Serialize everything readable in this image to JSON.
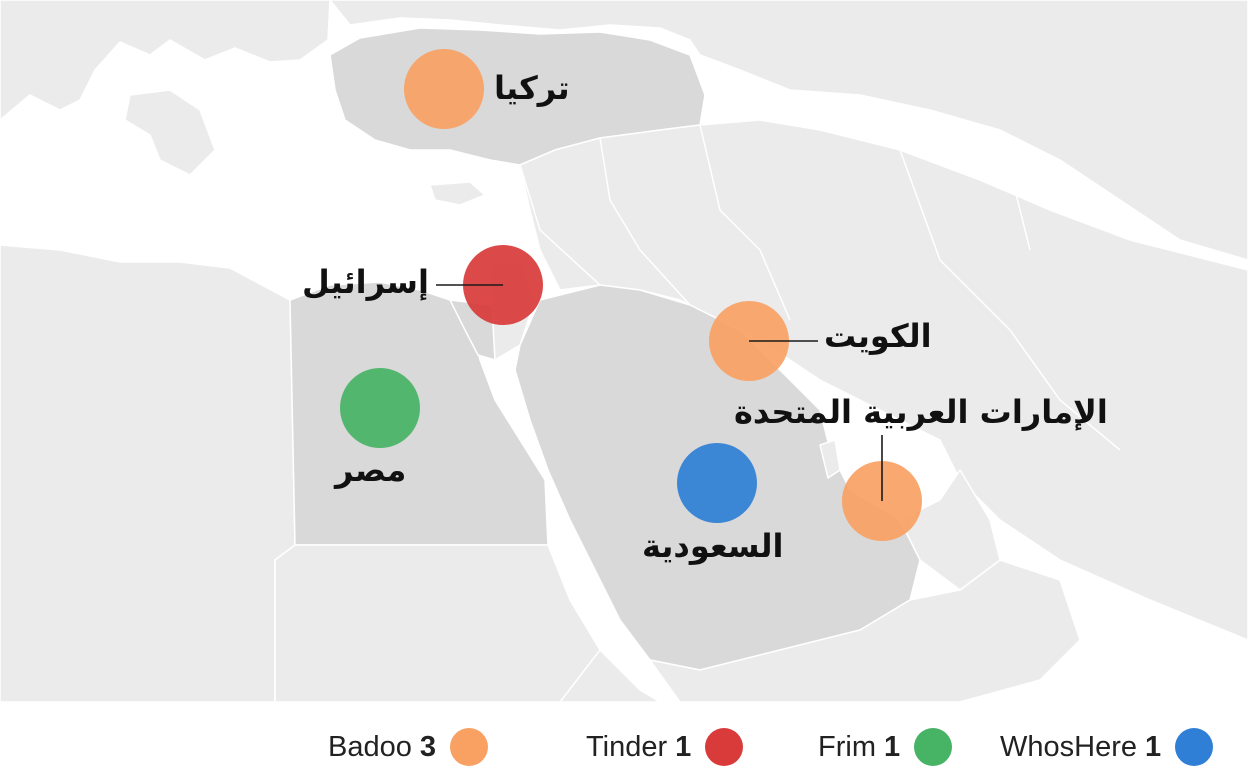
{
  "map": {
    "countries": [
      {
        "id": "turkey",
        "label": "تركيا",
        "app": "Badoo"
      },
      {
        "id": "israel",
        "label": "إسرائيل",
        "app": "Tinder"
      },
      {
        "id": "egypt",
        "label": "مصر",
        "app": "Frim"
      },
      {
        "id": "kuwait",
        "label": "الكويت",
        "app": "Badoo"
      },
      {
        "id": "uae",
        "label": "الإمارات العربية المتحدة",
        "app": "Badoo"
      },
      {
        "id": "saudi",
        "label": "السعودية",
        "app": "WhosHere"
      }
    ]
  },
  "legend": {
    "items": [
      {
        "name": "Badoo",
        "count": "3",
        "color": "#f9a163"
      },
      {
        "name": "Tinder",
        "count": "1",
        "color": "#d93a3a"
      },
      {
        "name": "Frim",
        "count": "1",
        "color": "#47b365"
      },
      {
        "name": "WhosHere",
        "count": "1",
        "color": "#2f7fd6"
      }
    ]
  },
  "colors": {
    "land": "#ebebeb",
    "highlighted_land": "#d9d9d9",
    "water": "#ffffff"
  }
}
